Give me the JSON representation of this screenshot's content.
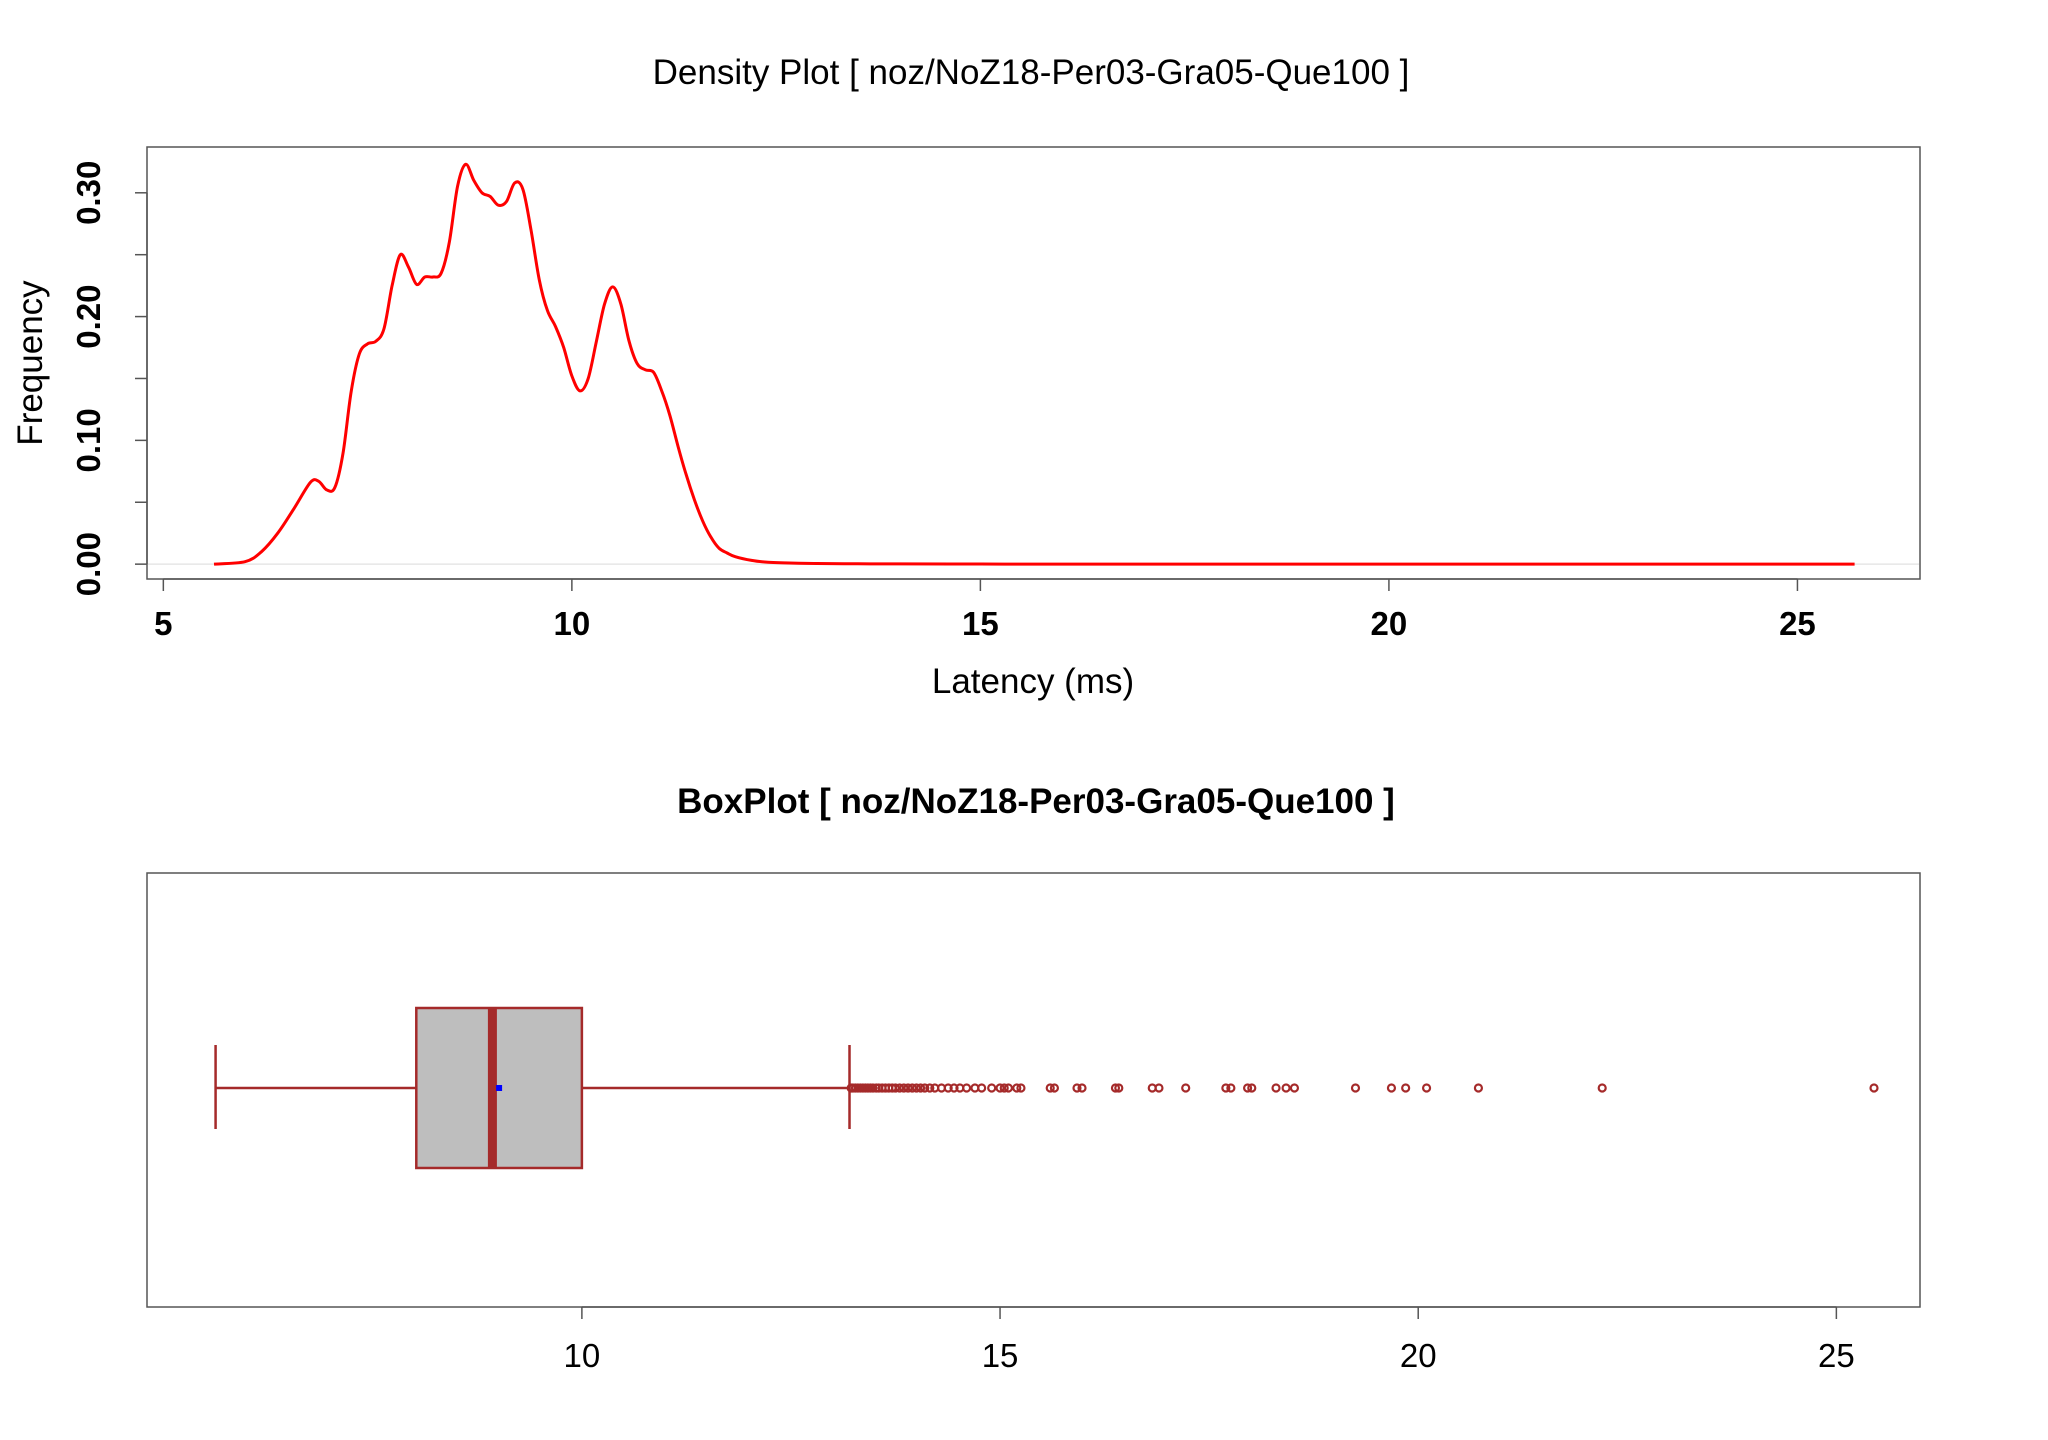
{
  "chart_data": [
    {
      "type": "line",
      "title": "Density Plot [ noz/NoZ18-Per03-Gra05-Que100 ]",
      "xlabel": "Latency (ms)",
      "ylabel": "Frequency",
      "xlim": [
        4.8,
        26.5
      ],
      "ylim": [
        -0.012,
        0.337
      ],
      "xticks": [
        5,
        10,
        15,
        20,
        25
      ],
      "xtick_labels": [
        "5",
        "10",
        "15",
        "20",
        "25"
      ],
      "yticks": [
        0,
        0.05,
        0.1,
        0.15,
        0.2,
        0.25,
        0.3
      ],
      "ytick_labels": [
        "0.00",
        "0.10",
        "0.20",
        "0.30"
      ],
      "ytick_label_values": [
        0,
        0.1,
        0.2,
        0.3
      ],
      "colors": {
        "line": "#ff0000",
        "axis": "#555555",
        "baseline": "#e6e6e6"
      },
      "series": [
        {
          "x": [
            5.62,
            6.0,
            6.2,
            6.4,
            6.6,
            6.8,
            6.9,
            7.0,
            7.1,
            7.2,
            7.3,
            7.4,
            7.5,
            7.6,
            7.7,
            7.8,
            7.9,
            8.0,
            8.1,
            8.2,
            8.3,
            8.4,
            8.5,
            8.6,
            8.7,
            8.8,
            8.9,
            9.0,
            9.1,
            9.2,
            9.3,
            9.4,
            9.5,
            9.6,
            9.7,
            9.8,
            9.9,
            10.0,
            10.1,
            10.2,
            10.3,
            10.4,
            10.5,
            10.6,
            10.7,
            10.8,
            10.9,
            11.0,
            11.1,
            11.2,
            11.3,
            11.4,
            11.5,
            11.6,
            11.7,
            11.8,
            11.9,
            12.0,
            12.2,
            12.4,
            12.6,
            13.0,
            13.5,
            14.0,
            15.0,
            16.0,
            18.0,
            20.0,
            22.0,
            24.0,
            25.7
          ],
          "y": [
            0.0,
            0.002,
            0.01,
            0.025,
            0.045,
            0.066,
            0.067,
            0.06,
            0.062,
            0.09,
            0.14,
            0.17,
            0.178,
            0.18,
            0.19,
            0.225,
            0.25,
            0.24,
            0.226,
            0.232,
            0.232,
            0.235,
            0.26,
            0.305,
            0.323,
            0.31,
            0.3,
            0.297,
            0.29,
            0.293,
            0.308,
            0.303,
            0.27,
            0.23,
            0.205,
            0.192,
            0.175,
            0.152,
            0.14,
            0.15,
            0.18,
            0.21,
            0.224,
            0.21,
            0.18,
            0.162,
            0.157,
            0.155,
            0.14,
            0.12,
            0.095,
            0.072,
            0.052,
            0.035,
            0.022,
            0.013,
            0.009,
            0.006,
            0.003,
            0.0015,
            0.001,
            0.0005,
            0.0003,
            0.0002,
            0.0001,
            5e-05,
            0.0,
            0.0,
            0.0,
            0.0,
            0.0
          ]
        }
      ]
    },
    {
      "type": "box",
      "title": "BoxPlot [ noz/NoZ18-Per03-Gra05-Que100 ]",
      "xlim": [
        4.8,
        26.0
      ],
      "xticks": [
        10,
        15,
        20,
        25
      ],
      "xtick_labels": [
        "10",
        "15",
        "20",
        "25"
      ],
      "colors": {
        "border": "#a52a2a",
        "fill": "#bebebe",
        "mean": "#0000ff",
        "axis": "#555555"
      },
      "whisker_low": 5.62,
      "q1": 8.02,
      "median": 8.93,
      "q3": 10.0,
      "whisker_high": 13.2,
      "mean": 9.01,
      "outliers": [
        13.22,
        13.24,
        13.27,
        13.3,
        13.33,
        13.36,
        13.39,
        13.42,
        13.45,
        13.48,
        13.52,
        13.55,
        13.59,
        13.63,
        13.67,
        13.71,
        13.75,
        13.8,
        13.85,
        13.9,
        13.95,
        14.0,
        14.05,
        14.1,
        14.16,
        14.22,
        14.3,
        14.38,
        14.45,
        14.52,
        14.6,
        14.7,
        14.78,
        14.9,
        15.0,
        15.05,
        15.1,
        15.2,
        15.25,
        15.6,
        15.65,
        15.92,
        15.98,
        16.38,
        16.42,
        16.82,
        16.9,
        17.22,
        17.7,
        17.76,
        17.96,
        18.01,
        18.3,
        18.42,
        18.52,
        19.25,
        19.68,
        19.85,
        20.1,
        20.72,
        22.2,
        25.45
      ]
    }
  ]
}
